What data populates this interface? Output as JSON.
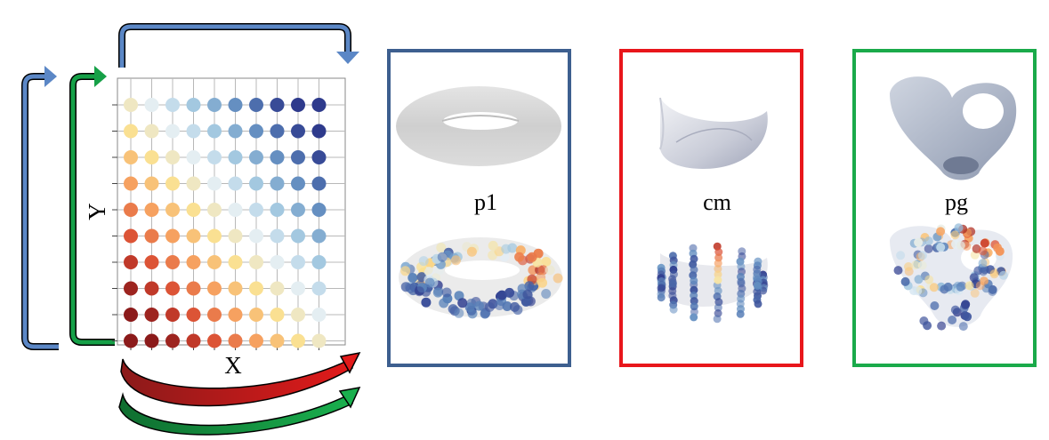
{
  "grid": {
    "x_label": "X",
    "y_label": "Y",
    "rows": 10,
    "cols": 10,
    "colormap": [
      "#8b1a1a",
      "#d7462f",
      "#f59a5b",
      "#fbe08f",
      "#e3eef5",
      "#9cc4de",
      "#5a84bb",
      "#2e3a8c"
    ]
  },
  "panels": [
    {
      "label": "p1",
      "border_color": "#3d5f8f"
    },
    {
      "label": "cm",
      "border_color": "#e8161b"
    },
    {
      "label": "pg",
      "border_color": "#1aaa4a"
    }
  ],
  "arrow_colors": {
    "blue": "#5b87c6",
    "green": "#15a047",
    "red": "#e21a1a"
  }
}
